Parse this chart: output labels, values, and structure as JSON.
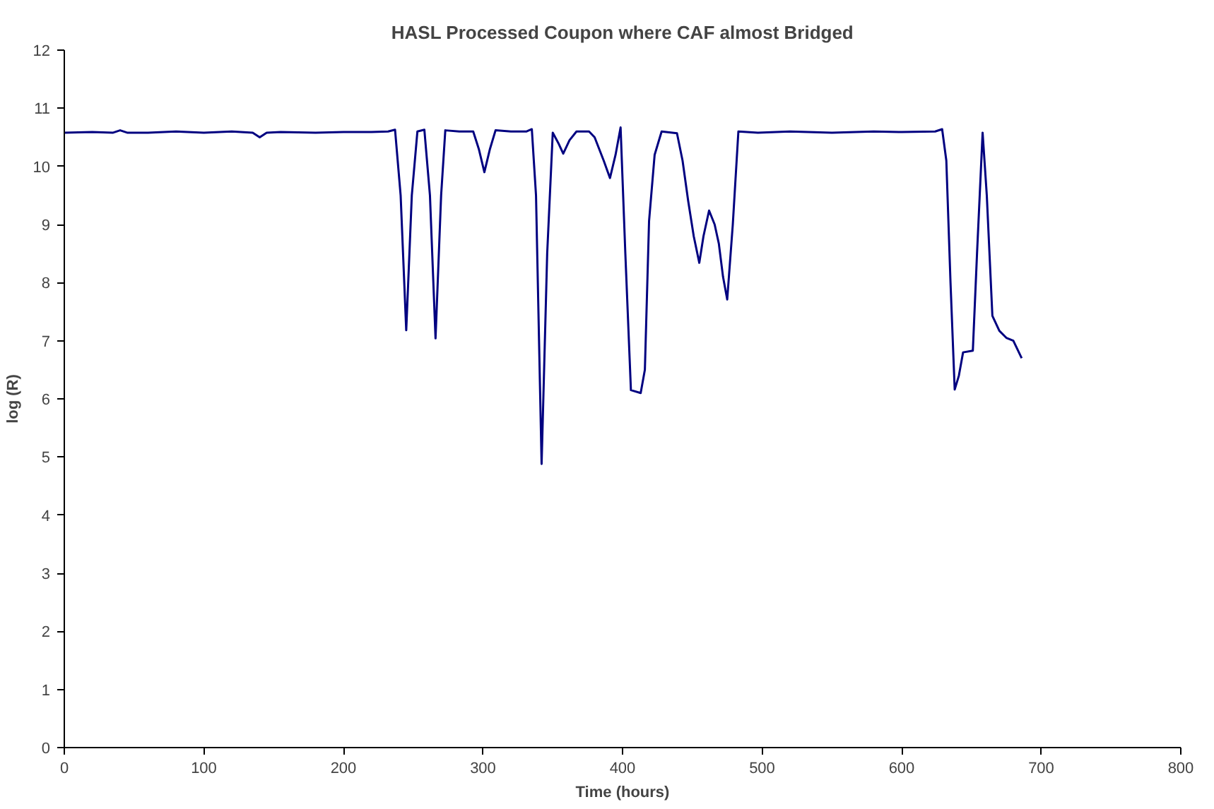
{
  "chart_data": {
    "type": "line",
    "title": "HASL Processed Coupon where CAF almost Bridged",
    "xlabel": "Time (hours)",
    "ylabel": "log (R)",
    "xlim": [
      0,
      800
    ],
    "ylim": [
      0,
      12
    ],
    "xticks": [
      0,
      100,
      200,
      300,
      400,
      500,
      600,
      700,
      800
    ],
    "yticks": [
      0,
      1,
      2,
      3,
      4,
      5,
      6,
      7,
      8,
      9,
      10,
      11,
      12
    ],
    "grid": false,
    "marker": "none",
    "line_style": "solid",
    "series": [
      {
        "color": "#000080",
        "x": [
          0,
          20,
          35,
          40,
          45,
          60,
          80,
          100,
          120,
          135,
          140,
          145,
          155,
          180,
          200,
          220,
          232,
          237,
          241,
          245,
          249,
          253,
          258,
          262,
          266,
          270,
          273,
          283,
          293,
          297,
          301,
          305,
          309,
          320,
          331,
          335,
          338,
          342,
          346,
          350,
          354,
          357.5,
          362,
          367,
          376,
          380,
          386.5,
          391,
          395,
          398.6,
          402,
          406,
          413,
          416,
          419,
          423,
          428,
          439,
          443,
          447,
          451,
          455,
          458,
          462,
          466,
          469,
          472,
          475,
          479,
          483,
          497,
          520,
          550,
          580,
          600,
          624,
          629,
          632,
          635,
          638,
          641,
          644,
          651,
          654,
          658,
          661,
          665,
          670,
          675,
          680,
          686
        ],
        "values": [
          10.58,
          10.59,
          10.58,
          10.62,
          10.58,
          10.58,
          10.6,
          10.58,
          10.6,
          10.58,
          10.5,
          10.58,
          10.59,
          10.58,
          10.59,
          10.59,
          10.6,
          10.63,
          9.5,
          7.18,
          9.5,
          10.6,
          10.63,
          9.5,
          7.04,
          9.5,
          10.62,
          10.6,
          10.6,
          10.3,
          9.9,
          10.3,
          10.62,
          10.6,
          10.6,
          10.64,
          9.5,
          4.88,
          8.5,
          10.58,
          10.4,
          10.22,
          10.45,
          10.6,
          10.6,
          10.5,
          10.1,
          9.8,
          10.2,
          10.67,
          8.5,
          6.15,
          6.1,
          6.5,
          9.06,
          10.2,
          10.6,
          10.57,
          10.1,
          9.41,
          8.8,
          8.34,
          8.8,
          9.24,
          9.0,
          8.67,
          8.1,
          7.71,
          9.0,
          10.6,
          10.58,
          10.6,
          10.58,
          10.6,
          10.59,
          10.6,
          10.64,
          10.1,
          8.0,
          6.16,
          6.4,
          6.8,
          6.83,
          8.5,
          10.58,
          9.5,
          7.43,
          7.17,
          7.05,
          7.0,
          6.7
        ]
      }
    ]
  }
}
